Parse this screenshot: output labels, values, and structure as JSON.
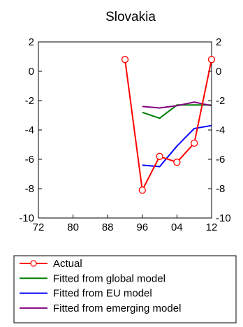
{
  "chart_data": {
    "type": "line",
    "title": "Slovakia",
    "xlabel": "",
    "ylabel": "",
    "xlim": [
      1972,
      2012
    ],
    "ylim": [
      -10,
      2
    ],
    "x_ticks": [
      1972,
      1980,
      1988,
      1996,
      2004,
      2012
    ],
    "x_tick_labels": [
      "72",
      "80",
      "88",
      "96",
      "04",
      "12"
    ],
    "y_ticks": [
      2,
      0,
      -2,
      -4,
      -6,
      -8,
      -10
    ],
    "y_tick_labels": [
      "2",
      "0",
      "-2",
      "-4",
      "-6",
      "-8",
      "-10"
    ],
    "grid": false,
    "legend_position": "bottom",
    "series": [
      {
        "name": "Actual",
        "color": "#ff0000",
        "marker": "open-circle",
        "x": [
          1992,
          1996,
          2000,
          2004,
          2008,
          2012
        ],
        "values": [
          0.8,
          -8.1,
          -5.8,
          -6.2,
          -4.9,
          0.8
        ]
      },
      {
        "name": "Fitted from global model",
        "color": "#008000",
        "marker": "none",
        "x": [
          1996,
          2000,
          2004,
          2008,
          2012
        ],
        "values": [
          -2.8,
          -3.2,
          -2.3,
          -2.3,
          -2.3
        ]
      },
      {
        "name": "Fitted from EU model",
        "color": "#0000ff",
        "marker": "none",
        "x": [
          1996,
          2000,
          2004,
          2008,
          2012
        ],
        "values": [
          -6.4,
          -6.5,
          -5.1,
          -3.9,
          -3.7
        ]
      },
      {
        "name": "Fitted from emerging model",
        "color": "#800080",
        "marker": "none",
        "x": [
          1996,
          2000,
          2004,
          2008,
          2012
        ],
        "values": [
          -2.4,
          -2.5,
          -2.35,
          -2.1,
          -2.35
        ]
      }
    ]
  }
}
